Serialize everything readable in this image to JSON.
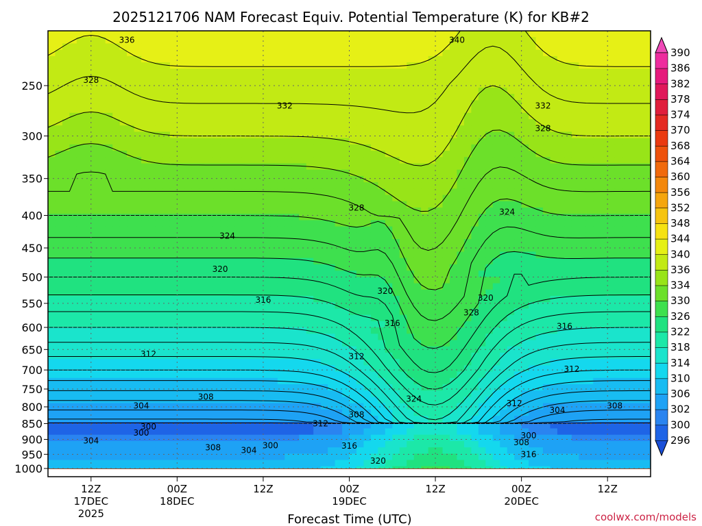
{
  "chart_data": {
    "type": "heatmap",
    "title": "2025121706 NAM Forecast Equiv. Potential Temperature (K) for KB#2",
    "xlabel": "Forecast Time (UTC)",
    "ylabel": "",
    "y_axis": {
      "scale": "log-pressure",
      "range": [
        1000,
        200
      ],
      "unit": "hPa",
      "ticks": [
        250,
        300,
        350,
        400,
        450,
        500,
        550,
        600,
        650,
        700,
        750,
        800,
        850,
        900,
        950,
        1000
      ]
    },
    "x_axis": {
      "range_hours": [
        0,
        84
      ],
      "ticks": [
        {
          "hour": 6,
          "l1": "12Z",
          "l2": "17DEC",
          "l3": "2025"
        },
        {
          "hour": 18,
          "l1": "00Z",
          "l2": "18DEC",
          "l3": ""
        },
        {
          "hour": 30,
          "l1": "12Z",
          "l2": "",
          "l3": ""
        },
        {
          "hour": 42,
          "l1": "00Z",
          "l2": "19DEC",
          "l3": ""
        },
        {
          "hour": 54,
          "l1": "12Z",
          "l2": "",
          "l3": ""
        },
        {
          "hour": 66,
          "l1": "00Z",
          "l2": "20DEC",
          "l3": ""
        },
        {
          "hour": 78,
          "l1": "12Z",
          "l2": "",
          "l3": ""
        }
      ]
    },
    "grid": true,
    "colorbar": {
      "levels": [
        296,
        300,
        302,
        306,
        310,
        314,
        318,
        322,
        326,
        330,
        334,
        336,
        340,
        344,
        348,
        352,
        356,
        360,
        364,
        368,
        370,
        374,
        378,
        382,
        386,
        390
      ],
      "colors": [
        "#1e64e6",
        "#2a84f0",
        "#1ea2f5",
        "#18bcf2",
        "#14d8ee",
        "#1ae4cc",
        "#1ce8a8",
        "#20e280",
        "#3ee04e",
        "#6ce02a",
        "#98e418",
        "#c2ea14",
        "#e6f016",
        "#f6e212",
        "#f6c410",
        "#f5a60e",
        "#f3880c",
        "#f06a0c",
        "#ee520c",
        "#ea3a10",
        "#e42a22",
        "#e01e3c",
        "#e0185a",
        "#e61a7c",
        "#ee2c9e"
      ],
      "below_color": "#1a4fd8",
      "above_color": "#f04ab8",
      "position": "right"
    },
    "contour_labels": [
      {
        "text": "336",
        "hour": 11,
        "p": 212
      },
      {
        "text": "340",
        "hour": 57,
        "p": 212
      },
      {
        "text": "328",
        "hour": 6,
        "p": 245
      },
      {
        "text": "332",
        "hour": 33,
        "p": 269
      },
      {
        "text": "332",
        "hour": 69,
        "p": 269
      },
      {
        "text": "328",
        "hour": 69,
        "p": 292
      },
      {
        "text": "328",
        "hour": 43,
        "p": 389
      },
      {
        "text": "324",
        "hour": 25,
        "p": 431
      },
      {
        "text": "324",
        "hour": 64,
        "p": 395
      },
      {
        "text": "320",
        "hour": 24,
        "p": 486
      },
      {
        "text": "320",
        "hour": 47,
        "p": 526
      },
      {
        "text": "320",
        "hour": 61,
        "p": 539
      },
      {
        "text": "328",
        "hour": 59,
        "p": 569
      },
      {
        "text": "316",
        "hour": 30,
        "p": 543
      },
      {
        "text": "316",
        "hour": 48,
        "p": 591
      },
      {
        "text": "316",
        "hour": 72,
        "p": 598
      },
      {
        "text": "312",
        "hour": 14,
        "p": 661
      },
      {
        "text": "312",
        "hour": 43,
        "p": 667
      },
      {
        "text": "312",
        "hour": 73,
        "p": 698
      },
      {
        "text": "308",
        "hour": 22,
        "p": 772
      },
      {
        "text": "308",
        "hour": 43,
        "p": 823
      },
      {
        "text": "308",
        "hour": 79,
        "p": 797
      },
      {
        "text": "304",
        "hour": 13,
        "p": 797
      },
      {
        "text": "304",
        "hour": 71,
        "p": 810
      },
      {
        "text": "312",
        "hour": 38,
        "p": 850
      },
      {
        "text": "324",
        "hour": 51,
        "p": 777
      },
      {
        "text": "312",
        "hour": 65,
        "p": 790
      },
      {
        "text": "300",
        "hour": 14,
        "p": 860
      },
      {
        "text": "300",
        "hour": 13,
        "p": 879
      },
      {
        "text": "304",
        "hour": 6,
        "p": 905
      },
      {
        "text": "300",
        "hour": 31,
        "p": 920
      },
      {
        "text": "308",
        "hour": 23,
        "p": 927
      },
      {
        "text": "304",
        "hour": 28,
        "p": 936
      },
      {
        "text": "316",
        "hour": 42,
        "p": 921
      },
      {
        "text": "320",
        "hour": 46,
        "p": 973
      },
      {
        "text": "300",
        "hour": 67,
        "p": 888
      },
      {
        "text": "308",
        "hour": 66,
        "p": 910
      },
      {
        "text": "316",
        "hour": 67,
        "p": 950
      }
    ]
  },
  "credit": "coolwx.com/models"
}
